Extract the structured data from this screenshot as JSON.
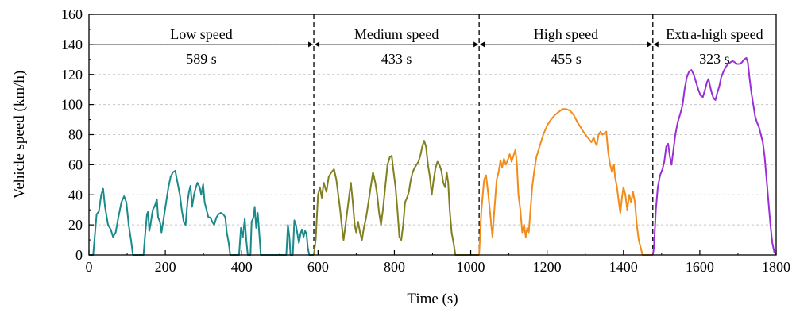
{
  "chart_data": {
    "type": "line",
    "title": "",
    "xlabel": "Time (s)",
    "ylabel": "Vehicle speed (km/h)",
    "xlim": [
      0,
      1800
    ],
    "ylim": [
      0,
      160
    ],
    "xticks": [
      0,
      200,
      400,
      600,
      800,
      1000,
      1200,
      1400,
      1600,
      1800
    ],
    "yticks": [
      0,
      20,
      40,
      60,
      80,
      100,
      120,
      140,
      160
    ],
    "grid": "horizontal-dashed",
    "phase_boundaries": [
      589,
      1022,
      1477
    ],
    "phases": [
      {
        "label": "Low speed",
        "duration": "589 s",
        "start": 0,
        "end": 589
      },
      {
        "label": "Medium speed",
        "duration": "433 s",
        "start": 589,
        "end": 1022
      },
      {
        "label": "High speed",
        "duration": "455 s",
        "start": 1022,
        "end": 1477
      },
      {
        "label": "Extra-high speed",
        "duration": "323 s",
        "start": 1477,
        "end": 1800
      }
    ],
    "series": [
      {
        "color": "#1a8a8a",
        "points": [
          [
            0,
            0
          ],
          [
            11,
            0
          ],
          [
            16,
            15
          ],
          [
            20,
            27
          ],
          [
            26,
            29
          ],
          [
            32,
            40
          ],
          [
            37,
            44
          ],
          [
            42,
            32
          ],
          [
            50,
            20
          ],
          [
            57,
            17
          ],
          [
            63,
            12
          ],
          [
            70,
            15
          ],
          [
            77,
            25
          ],
          [
            85,
            35
          ],
          [
            92,
            39
          ],
          [
            98,
            35
          ],
          [
            104,
            20
          ],
          [
            110,
            10
          ],
          [
            115,
            0
          ],
          [
            143,
            0
          ],
          [
            147,
            13
          ],
          [
            152,
            27
          ],
          [
            155,
            29
          ],
          [
            158,
            16
          ],
          [
            161,
            20
          ],
          [
            167,
            30
          ],
          [
            173,
            33
          ],
          [
            178,
            37
          ],
          [
            181,
            25
          ],
          [
            186,
            22
          ],
          [
            190,
            15
          ],
          [
            196,
            25
          ],
          [
            202,
            35
          ],
          [
            208,
            45
          ],
          [
            214,
            52
          ],
          [
            220,
            55
          ],
          [
            226,
            56
          ],
          [
            232,
            48
          ],
          [
            238,
            40
          ],
          [
            243,
            30
          ],
          [
            248,
            22
          ],
          [
            253,
            20
          ],
          [
            258,
            35
          ],
          [
            262,
            42
          ],
          [
            266,
            46
          ],
          [
            270,
            32
          ],
          [
            275,
            40
          ],
          [
            280,
            45
          ],
          [
            284,
            48
          ],
          [
            290,
            45
          ],
          [
            294,
            40
          ],
          [
            299,
            47
          ],
          [
            303,
            35
          ],
          [
            308,
            30
          ],
          [
            313,
            25
          ],
          [
            318,
            25
          ],
          [
            323,
            22
          ],
          [
            328,
            20
          ],
          [
            334,
            25
          ],
          [
            339,
            27
          ],
          [
            345,
            28
          ],
          [
            352,
            27
          ],
          [
            357,
            25
          ],
          [
            361,
            15
          ],
          [
            366,
            8
          ],
          [
            370,
            0
          ],
          [
            393,
            0
          ],
          [
            398,
            18
          ],
          [
            403,
            12
          ],
          [
            408,
            24
          ],
          [
            412,
            10
          ],
          [
            416,
            0
          ],
          [
            423,
            0
          ],
          [
            426,
            22
          ],
          [
            431,
            25
          ],
          [
            434,
            32
          ],
          [
            438,
            18
          ],
          [
            442,
            28
          ],
          [
            446,
            15
          ],
          [
            450,
            0
          ],
          [
            517,
            0
          ],
          [
            521,
            20
          ],
          [
            525,
            12
          ],
          [
            528,
            0
          ],
          [
            534,
            0
          ],
          [
            538,
            23
          ],
          [
            542,
            20
          ],
          [
            546,
            14
          ],
          [
            550,
            8
          ],
          [
            554,
            14
          ],
          [
            558,
            17
          ],
          [
            562,
            12
          ],
          [
            566,
            16
          ],
          [
            570,
            14
          ],
          [
            573,
            5
          ],
          [
            577,
            0
          ],
          [
            589,
            0
          ]
        ]
      },
      {
        "color": "#808020",
        "points": [
          [
            589,
            0
          ],
          [
            594,
            10
          ],
          [
            600,
            40
          ],
          [
            605,
            45
          ],
          [
            610,
            38
          ],
          [
            615,
            48
          ],
          [
            622,
            42
          ],
          [
            628,
            52
          ],
          [
            635,
            55
          ],
          [
            642,
            57
          ],
          [
            648,
            50
          ],
          [
            653,
            40
          ],
          [
            658,
            30
          ],
          [
            662,
            20
          ],
          [
            667,
            10
          ],
          [
            672,
            20
          ],
          [
            677,
            30
          ],
          [
            682,
            40
          ],
          [
            686,
            48
          ],
          [
            691,
            35
          ],
          [
            696,
            20
          ],
          [
            700,
            15
          ],
          [
            705,
            22
          ],
          [
            710,
            15
          ],
          [
            715,
            10
          ],
          [
            720,
            18
          ],
          [
            726,
            25
          ],
          [
            732,
            35
          ],
          [
            738,
            45
          ],
          [
            744,
            55
          ],
          [
            750,
            48
          ],
          [
            755,
            40
          ],
          [
            760,
            28
          ],
          [
            765,
            20
          ],
          [
            770,
            30
          ],
          [
            776,
            45
          ],
          [
            782,
            60
          ],
          [
            788,
            65
          ],
          [
            793,
            66
          ],
          [
            798,
            55
          ],
          [
            803,
            45
          ],
          [
            808,
            30
          ],
          [
            813,
            12
          ],
          [
            818,
            10
          ],
          [
            823,
            20
          ],
          [
            828,
            35
          ],
          [
            833,
            38
          ],
          [
            838,
            42
          ],
          [
            843,
            50
          ],
          [
            848,
            55
          ],
          [
            853,
            58
          ],
          [
            858,
            60
          ],
          [
            863,
            62
          ],
          [
            868,
            66
          ],
          [
            873,
            72
          ],
          [
            878,
            76
          ],
          [
            883,
            72
          ],
          [
            888,
            60
          ],
          [
            893,
            52
          ],
          [
            898,
            40
          ],
          [
            903,
            50
          ],
          [
            908,
            58
          ],
          [
            913,
            62
          ],
          [
            918,
            60
          ],
          [
            923,
            56
          ],
          [
            928,
            48
          ],
          [
            933,
            45
          ],
          [
            937,
            55
          ],
          [
            941,
            48
          ],
          [
            945,
            30
          ],
          [
            950,
            15
          ],
          [
            955,
            8
          ],
          [
            960,
            0
          ],
          [
            1022,
            0
          ]
        ]
      },
      {
        "color": "#f28c1a",
        "points": [
          [
            1022,
            0
          ],
          [
            1028,
            30
          ],
          [
            1035,
            50
          ],
          [
            1040,
            53
          ],
          [
            1046,
            40
          ],
          [
            1052,
            25
          ],
          [
            1057,
            12
          ],
          [
            1062,
            30
          ],
          [
            1068,
            50
          ],
          [
            1073,
            55
          ],
          [
            1078,
            63
          ],
          [
            1082,
            58
          ],
          [
            1087,
            64
          ],
          [
            1092,
            60
          ],
          [
            1097,
            63
          ],
          [
            1102,
            67
          ],
          [
            1107,
            62
          ],
          [
            1112,
            66
          ],
          [
            1117,
            70
          ],
          [
            1121,
            60
          ],
          [
            1125,
            40
          ],
          [
            1130,
            30
          ],
          [
            1135,
            15
          ],
          [
            1140,
            20
          ],
          [
            1144,
            12
          ],
          [
            1148,
            18
          ],
          [
            1152,
            15
          ],
          [
            1156,
            28
          ],
          [
            1161,
            45
          ],
          [
            1166,
            55
          ],
          [
            1172,
            65
          ],
          [
            1180,
            72
          ],
          [
            1190,
            80
          ],
          [
            1200,
            86
          ],
          [
            1210,
            90
          ],
          [
            1220,
            93
          ],
          [
            1230,
            95
          ],
          [
            1240,
            97
          ],
          [
            1250,
            97
          ],
          [
            1260,
            96
          ],
          [
            1270,
            93
          ],
          [
            1280,
            88
          ],
          [
            1290,
            84
          ],
          [
            1300,
            80
          ],
          [
            1310,
            77
          ],
          [
            1316,
            75
          ],
          [
            1322,
            78
          ],
          [
            1326,
            75
          ],
          [
            1330,
            73
          ],
          [
            1335,
            80
          ],
          [
            1340,
            82
          ],
          [
            1345,
            80
          ],
          [
            1350,
            81
          ],
          [
            1355,
            82
          ],
          [
            1360,
            68
          ],
          [
            1365,
            60
          ],
          [
            1370,
            55
          ],
          [
            1375,
            60
          ],
          [
            1378,
            52
          ],
          [
            1383,
            45
          ],
          [
            1388,
            35
          ],
          [
            1392,
            28
          ],
          [
            1396,
            38
          ],
          [
            1400,
            45
          ],
          [
            1405,
            40
          ],
          [
            1410,
            30
          ],
          [
            1415,
            40
          ],
          [
            1420,
            35
          ],
          [
            1425,
            42
          ],
          [
            1430,
            35
          ],
          [
            1435,
            20
          ],
          [
            1440,
            10
          ],
          [
            1445,
            5
          ],
          [
            1450,
            0
          ],
          [
            1477,
            0
          ]
        ]
      },
      {
        "color": "#9a2fd8",
        "points": [
          [
            1477,
            0
          ],
          [
            1480,
            5
          ],
          [
            1485,
            30
          ],
          [
            1490,
            45
          ],
          [
            1496,
            53
          ],
          [
            1502,
            57
          ],
          [
            1507,
            62
          ],
          [
            1512,
            72
          ],
          [
            1517,
            74
          ],
          [
            1522,
            65
          ],
          [
            1526,
            60
          ],
          [
            1531,
            70
          ],
          [
            1536,
            80
          ],
          [
            1542,
            88
          ],
          [
            1550,
            95
          ],
          [
            1555,
            100
          ],
          [
            1560,
            110
          ],
          [
            1566,
            118
          ],
          [
            1572,
            122
          ],
          [
            1578,
            123
          ],
          [
            1584,
            120
          ],
          [
            1590,
            115
          ],
          [
            1596,
            110
          ],
          [
            1602,
            106
          ],
          [
            1608,
            105
          ],
          [
            1614,
            110
          ],
          [
            1619,
            115
          ],
          [
            1623,
            117
          ],
          [
            1627,
            112
          ],
          [
            1631,
            108
          ],
          [
            1636,
            104
          ],
          [
            1641,
            103
          ],
          [
            1646,
            108
          ],
          [
            1651,
            112
          ],
          [
            1656,
            118
          ],
          [
            1662,
            122
          ],
          [
            1668,
            125
          ],
          [
            1674,
            127
          ],
          [
            1680,
            128
          ],
          [
            1686,
            129
          ],
          [
            1692,
            128
          ],
          [
            1698,
            127
          ],
          [
            1704,
            127
          ],
          [
            1710,
            128
          ],
          [
            1716,
            130
          ],
          [
            1722,
            131
          ],
          [
            1726,
            128
          ],
          [
            1730,
            118
          ],
          [
            1735,
            108
          ],
          [
            1740,
            100
          ],
          [
            1745,
            92
          ],
          [
            1750,
            88
          ],
          [
            1755,
            85
          ],
          [
            1760,
            80
          ],
          [
            1765,
            75
          ],
          [
            1770,
            65
          ],
          [
            1775,
            50
          ],
          [
            1780,
            35
          ],
          [
            1785,
            20
          ],
          [
            1790,
            8
          ],
          [
            1795,
            2
          ],
          [
            1800,
            0
          ]
        ]
      }
    ]
  }
}
